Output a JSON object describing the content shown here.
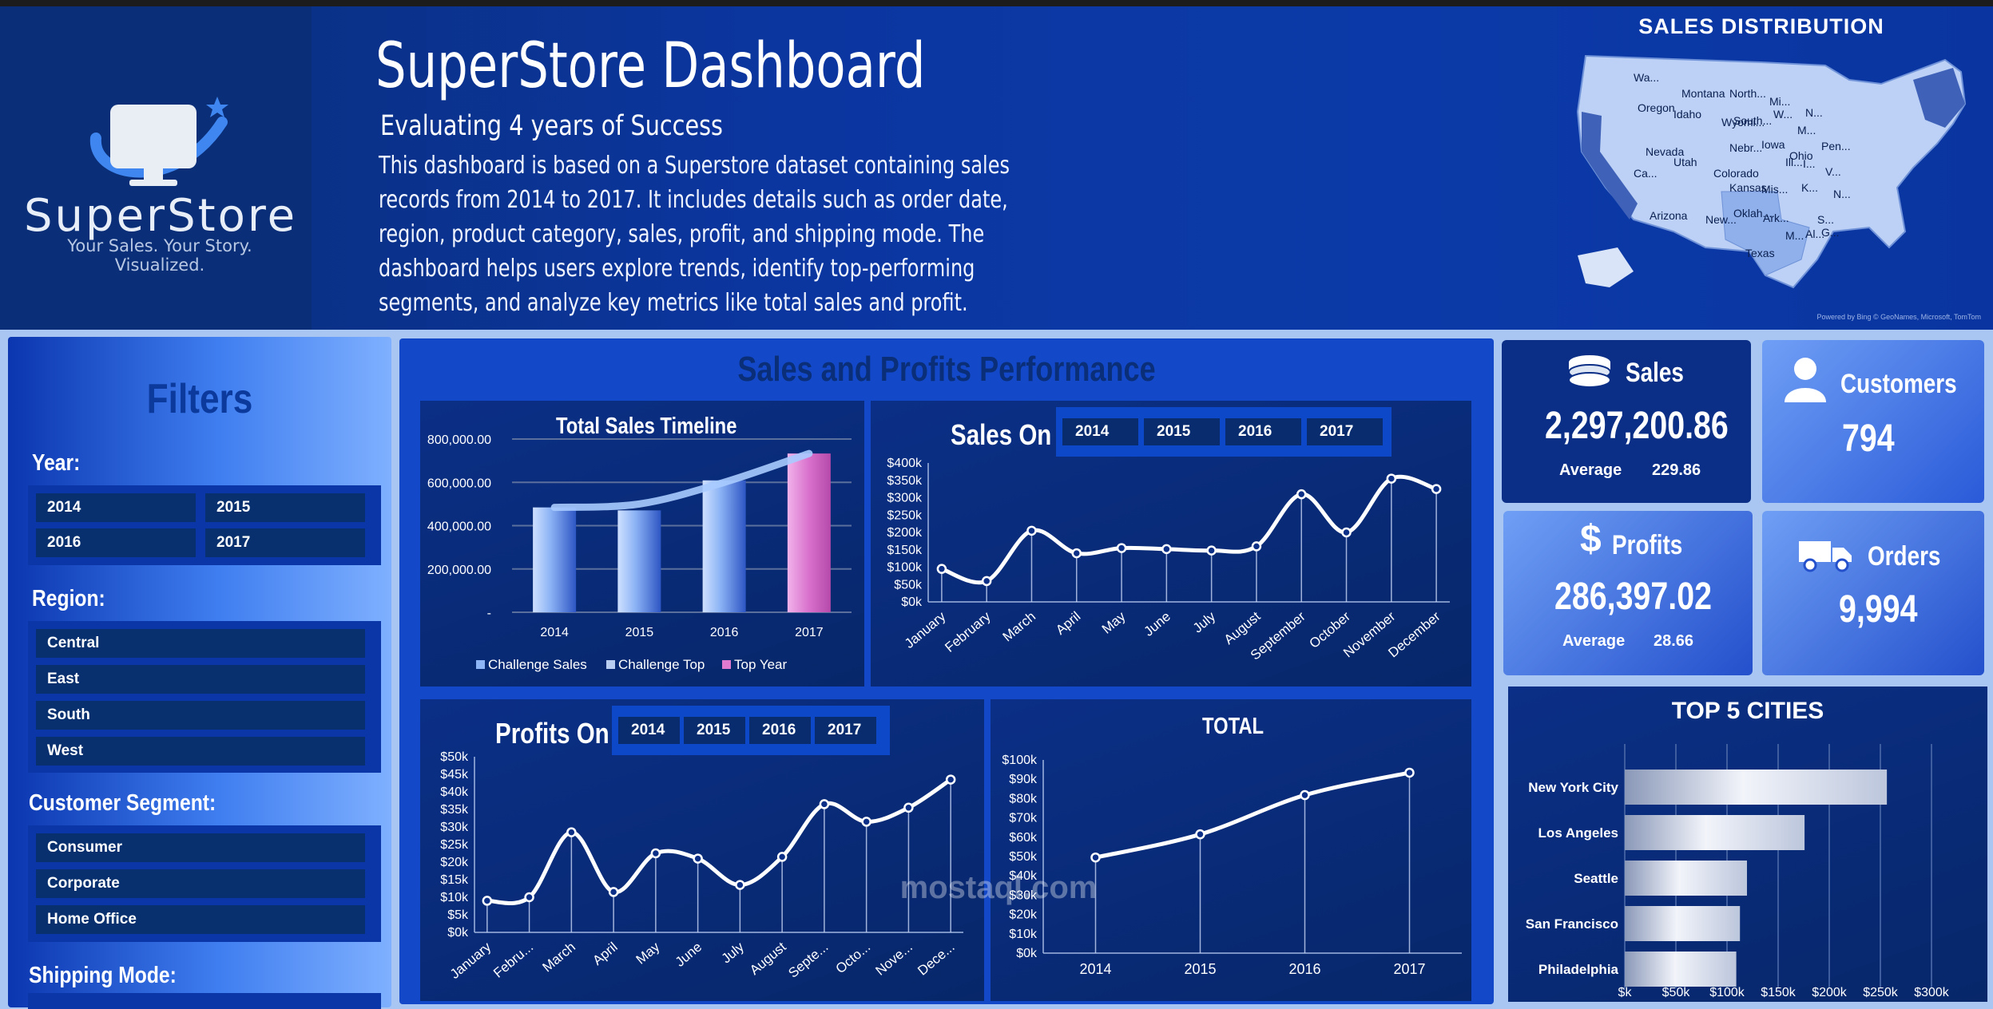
{
  "header": {
    "logo_word": "SuperStore",
    "logo_tagline": "Your Sales. Your Story. Visualized.",
    "title": "SuperStore Dashboard",
    "subtitle": "Evaluating 4 years of Success",
    "description": "This dashboard is based on a Superstore dataset containing sales records from 2014 to 2017. It includes details such as order date, region, product category, sales, profit, and shipping mode. The dashboard helps users explore trends, identify top-performing segments, and analyze key metrics like total sales and profit.",
    "map_title": "SALES DISTRIBUTION",
    "map_states": [
      "Wa...",
      "Montana",
      "North...",
      "Mi...",
      "Oregon",
      "Idaho",
      "Wyomi...",
      "South...",
      "W...",
      "M...",
      "N...",
      "Nevada",
      "Utah",
      "Colorado",
      "Nebr...",
      "Iowa",
      "Ohio",
      "Pen...",
      "Ca...",
      "Kansas",
      "Mis...",
      "Ill...",
      "I...",
      "V...",
      "K...",
      "N...",
      "Arizona",
      "New...",
      "Oklah...",
      "Ark...",
      "S...",
      "Texas",
      "M...",
      "Al...",
      "G..."
    ],
    "map_credit": "Powered by Bing © GeoNames, Microsoft, TomTom"
  },
  "filters": {
    "title": "Filters",
    "year_label": "Year:",
    "years": [
      "2014",
      "2015",
      "2016",
      "2017"
    ],
    "region_label": "Region:",
    "regions": [
      "Central",
      "East",
      "South",
      "West"
    ],
    "segment_label": "Customer Segment:",
    "segments": [
      "Consumer",
      "Corporate",
      "Home Office"
    ],
    "ship_label": "Shipping Mode:"
  },
  "performance": {
    "title": "Sales and Profits Performance",
    "sales_on_label": "Sales On",
    "profits_on_label": "Profits On",
    "year_buttons": [
      "2014",
      "2015",
      "2016",
      "2017"
    ]
  },
  "kpis": {
    "sales_label": "Sales",
    "sales_value": "2,297,200.86",
    "sales_avg_label": "Average",
    "sales_avg_value": "229.86",
    "customers_label": "Customers",
    "customers_value": "794",
    "profits_label": "Profits",
    "profits_value": "286,397.02",
    "profits_avg_label": "Average",
    "profits_avg_value": "28.66",
    "orders_label": "Orders",
    "orders_value": "9,994"
  },
  "watermark": "mostaql.com",
  "colors": {
    "header": "#0b36a0",
    "panel": "#07276a",
    "accent": "#1348c8",
    "top_year": "#e07ad0"
  },
  "chart_data": [
    {
      "id": "total_sales_timeline",
      "type": "bar",
      "title": "Total Sales Timeline",
      "categories": [
        "2014",
        "2015",
        "2016",
        "2017"
      ],
      "series": [
        {
          "name": "Challenge Sales",
          "values": [
            484247,
            470533,
            609206,
            733215
          ]
        }
      ],
      "trend": {
        "name": "Challenge Top",
        "values": [
          484247,
          500000,
          600000,
          733215
        ]
      },
      "highlight": {
        "name": "Top Year",
        "category": "2017"
      },
      "y_ticks": [
        "-",
        "200,000.00",
        "400,000.00",
        "600,000.00",
        "800,000.00"
      ],
      "ylim": [
        0,
        800000
      ],
      "legend": [
        "Challenge Sales",
        "Challenge Top",
        "Top Year"
      ],
      "legend_position": "bottom"
    },
    {
      "id": "sales_on",
      "type": "line",
      "categories": [
        "January",
        "February",
        "March",
        "April",
        "May",
        "June",
        "July",
        "August",
        "September",
        "October",
        "November",
        "December"
      ],
      "values": [
        95000,
        60000,
        205000,
        140000,
        155000,
        152000,
        148000,
        160000,
        310000,
        200000,
        355000,
        325000
      ],
      "y_ticks": [
        "$0k",
        "$50k",
        "$100k",
        "$150k",
        "$200k",
        "$250k",
        "$300k",
        "$350k",
        "$400k"
      ],
      "ylim": [
        0,
        400000
      ]
    },
    {
      "id": "profits_on",
      "type": "line",
      "categories": [
        "January",
        "Febru...",
        "March",
        "April",
        "May",
        "June",
        "July",
        "August",
        "Septe...",
        "Octo...",
        "Nove...",
        "Dece..."
      ],
      "values": [
        9000,
        10000,
        28500,
        11500,
        22500,
        21000,
        13500,
        21500,
        36500,
        31500,
        35500,
        43500
      ],
      "y_ticks": [
        "$0k",
        "$5k",
        "$10k",
        "$15k",
        "$20k",
        "$25k",
        "$30k",
        "$35k",
        "$40k",
        "$45k",
        "$50k"
      ],
      "ylim": [
        0,
        50000
      ]
    },
    {
      "id": "total_profit",
      "type": "line",
      "title": "TOTAL",
      "categories": [
        "2014",
        "2015",
        "2016",
        "2017"
      ],
      "values": [
        49500,
        61500,
        81800,
        93400
      ],
      "y_ticks": [
        "$0k",
        "$10k",
        "$20k",
        "$30k",
        "$40k",
        "$50k",
        "$60k",
        "$70k",
        "$80k",
        "$90k",
        "$100k"
      ],
      "ylim": [
        0,
        100000
      ]
    },
    {
      "id": "top5_cities",
      "type": "bar",
      "orientation": "horizontal",
      "title": "TOP 5 CITIES",
      "categories": [
        "New York City",
        "Los Angeles",
        "Seattle",
        "San Francisco",
        "Philadelphia"
      ],
      "values": [
        256368,
        175851,
        119541,
        112669,
        109077
      ],
      "x_ticks": [
        "$k",
        "$50k",
        "$100k",
        "$150k",
        "$200k",
        "$250k",
        "$300k"
      ],
      "xlim": [
        0,
        300000
      ]
    }
  ]
}
